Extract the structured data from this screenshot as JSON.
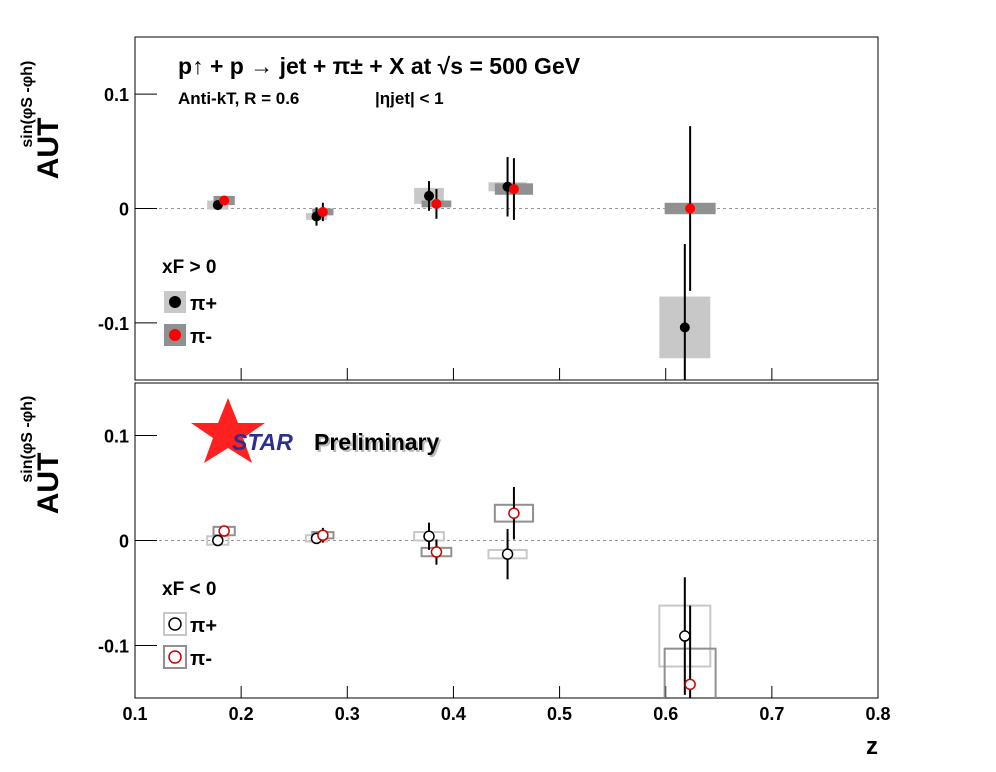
{
  "chart_data": [
    {
      "type": "scatter",
      "title": "p↑ + p → jet + π± + X at √s = 500 GeV",
      "subtitle": "Anti-kT, R = 0.6",
      "annotation": "|ηjet| < 1",
      "ylabel": "AUT",
      "ylabel_sup": "sin(φS -φh)",
      "legend_title": "xF > 0",
      "marker": "filled",
      "xlim": [
        0.1,
        0.8
      ],
      "xticks": [
        0.1,
        0.2,
        0.3,
        0.4,
        0.5,
        0.6,
        0.7,
        0.8
      ],
      "ylim": [
        -0.15,
        0.15
      ],
      "yticks": [
        -0.1,
        0,
        0.1
      ],
      "series": [
        {
          "name": "π+",
          "color": "#000000",
          "sys_color": "#c8c8c8",
          "x": [
            0.178,
            0.271,
            0.377,
            0.451,
            0.618
          ],
          "xerr": [
            0.01,
            0.01,
            0.014,
            0.018,
            0.024
          ],
          "values": [
            0.003,
            -0.007,
            0.011,
            0.019,
            -0.104
          ],
          "errors": [
            0.004,
            0.008,
            0.013,
            0.026,
            0.073
          ],
          "sys": [
            0.004,
            0.003,
            0.007,
            0.004,
            0.027
          ]
        },
        {
          "name": "π-",
          "color": "#ff0000",
          "sys_color": "#909090",
          "x": [
            0.184,
            0.277,
            0.384,
            0.457,
            0.623
          ],
          "xerr": [
            0.01,
            0.01,
            0.014,
            0.018,
            0.024
          ],
          "values": [
            0.007,
            -0.003,
            0.004,
            0.017,
            0.0
          ],
          "errors": [
            0.003,
            0.008,
            0.013,
            0.027,
            0.072
          ],
          "sys": [
            0.004,
            0.003,
            0.003,
            0.005,
            0.005
          ]
        }
      ]
    },
    {
      "type": "scatter",
      "preliminary_a": "STAR",
      "preliminary_b": "Preliminary",
      "ylabel": "AUT",
      "ylabel_sup": "sin(φS -φh)",
      "xlabel": "z",
      "legend_title": "xF < 0",
      "marker": "open",
      "xlim": [
        0.1,
        0.8
      ],
      "xticks": [
        0.1,
        0.2,
        0.3,
        0.4,
        0.5,
        0.6,
        0.7,
        0.8
      ],
      "ylim": [
        -0.15,
        0.15
      ],
      "yticks": [
        -0.1,
        0,
        0.1
      ],
      "series": [
        {
          "name": "π+",
          "color": "#000000",
          "sys_color": "#c8c8c8",
          "x": [
            0.178,
            0.271,
            0.377,
            0.451,
            0.618
          ],
          "xerr": [
            0.01,
            0.01,
            0.014,
            0.018,
            0.024
          ],
          "values": [
            0.0,
            0.002,
            0.004,
            -0.013,
            -0.091
          ],
          "errors": [
            0.004,
            0.005,
            0.013,
            0.024,
            0.056
          ],
          "sys": [
            0.004,
            0.003,
            0.004,
            0.004,
            0.029
          ]
        },
        {
          "name": "π-",
          "color": "#cc0000",
          "sys_color": "#909090",
          "x": [
            0.184,
            0.277,
            0.384,
            0.457,
            0.623
          ],
          "xerr": [
            0.01,
            0.01,
            0.014,
            0.018,
            0.024
          ],
          "values": [
            0.009,
            0.005,
            -0.011,
            0.026,
            -0.137
          ],
          "errors": [
            0.003,
            0.007,
            0.012,
            0.025,
            0.075
          ],
          "sys": [
            0.004,
            0.003,
            0.004,
            0.008,
            0.034
          ]
        }
      ]
    }
  ]
}
